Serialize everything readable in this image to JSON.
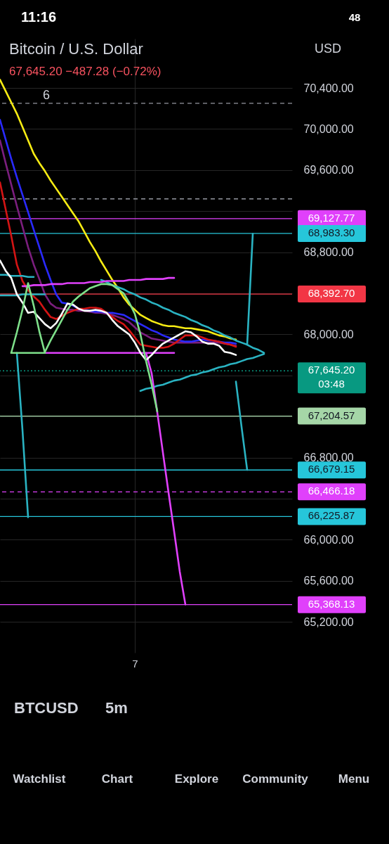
{
  "chart_data": {
    "type": "line",
    "title": "Bitcoin / U.S. Dollar",
    "subtitle": "67,645.20  −487.28 (−0.72%)",
    "categories": [
      null,
      null,
      null,
      null,
      null,
      null,
      null,
      null,
      null,
      null,
      null,
      null,
      null,
      null,
      null,
      null,
      null,
      null,
      null,
      null,
      null,
      null,
      null,
      null,
      "7",
      null,
      null,
      null,
      null,
      null,
      null,
      null,
      null,
      null,
      null,
      null,
      null,
      null,
      null,
      null,
      null,
      null,
      null,
      null,
      null,
      null,
      null,
      null,
      null,
      null,
      null,
      null,
      null
    ],
    "ylim": [
      64900,
      70880
    ],
    "yticks": [
      {
        "value": 70400,
        "label": "70,400.00"
      },
      {
        "value": 70000,
        "label": "70,000.00"
      },
      {
        "value": 69600,
        "label": "69,600.00"
      },
      {
        "value": 69200,
        "label": null
      },
      {
        "value": 68800,
        "label": "68,800.00"
      },
      {
        "value": 68400,
        "label": null
      },
      {
        "value": 68000,
        "label": "68,000.00"
      },
      {
        "value": 67600,
        "label": null
      },
      {
        "value": 67200,
        "label": null
      },
      {
        "value": 66800,
        "label": "66,800.00"
      },
      {
        "value": 66400,
        "label": null
      },
      {
        "value": 66000,
        "label": "66,000.00"
      },
      {
        "value": 65600,
        "label": "65,600.00"
      },
      {
        "value": 65200,
        "label": "65,200.00"
      }
    ],
    "grid": true,
    "series": [
      {
        "color": "#f7ec13",
        "values": [
          70480,
          70370,
          70260,
          70150,
          70020,
          69890,
          69760,
          69670,
          69590,
          69500,
          69420,
          69340,
          69260,
          69180,
          69100,
          69000,
          68900,
          68810,
          68710,
          68620,
          68530,
          68450,
          68360,
          68290,
          68240,
          68190,
          68160,
          68130,
          68110,
          68090,
          68080,
          68080,
          68070,
          68060,
          68060,
          68050,
          68040,
          68030,
          68010,
          67990,
          67980,
          67960,
          67950,
          null,
          null,
          null,
          null,
          null,
          null,
          null,
          null,
          null,
          null
        ]
      },
      {
        "color": "#7b1e7e",
        "values": [
          69890,
          69670,
          69460,
          69250,
          69050,
          68850,
          68680,
          68540,
          68390,
          68300,
          68260,
          68250,
          68240,
          68240,
          68230,
          68230,
          68220,
          68210,
          68210,
          68200,
          68190,
          68170,
          68150,
          68120,
          68070,
          68020,
          67990,
          67960,
          67950,
          67940,
          67930,
          67920,
          67920,
          67920,
          67920,
          67920,
          67920,
          67920,
          67920,
          67920,
          67910,
          67900,
          67890,
          null,
          null,
          null,
          null,
          null,
          null,
          null,
          null,
          null,
          null
        ]
      },
      {
        "color": "#2a2aff",
        "values": [
          70090,
          69900,
          69710,
          69530,
          69360,
          69190,
          69020,
          68850,
          68680,
          68530,
          68390,
          68310,
          68300,
          68280,
          68250,
          68240,
          68230,
          68220,
          68220,
          68210,
          68210,
          68200,
          68190,
          68160,
          68130,
          68100,
          68070,
          68040,
          68020,
          67990,
          67970,
          67950,
          67940,
          67930,
          67930,
          67940,
          67950,
          67940,
          67940,
          67930,
          67920,
          67920,
          67910,
          null,
          null,
          null,
          null,
          null,
          null,
          null,
          null,
          null,
          null
        ]
      },
      {
        "color": "#d41414",
        "values": [
          69480,
          69220,
          68960,
          68680,
          68520,
          68430,
          68370,
          68320,
          68240,
          68170,
          68150,
          68180,
          68210,
          68230,
          68250,
          68250,
          68260,
          68260,
          68250,
          68210,
          68170,
          68130,
          68100,
          68040,
          67970,
          67900,
          67890,
          67880,
          67870,
          67870,
          67880,
          67910,
          67950,
          67990,
          67990,
          67990,
          67970,
          67950,
          67940,
          67930,
          67910,
          67900,
          67880,
          null,
          null,
          null,
          null,
          null,
          null,
          null,
          null,
          null,
          null
        ]
      },
      {
        "color": "#2ab3c2",
        "values": [
          68580,
          68580,
          68570,
          68570,
          68570,
          68560,
          68560,
          null,
          null,
          null,
          null,
          null,
          null,
          null,
          null,
          null,
          null,
          null,
          null,
          null,
          null,
          null,
          null,
          null,
          null,
          null,
          null,
          null,
          null,
          null,
          null,
          null,
          null,
          null,
          null,
          null,
          null,
          null,
          null,
          null,
          null,
          null,
          null,
          null,
          null,
          null,
          null,
          null,
          null,
          null,
          null,
          null,
          null
        ]
      },
      {
        "color": "#2ab3c2",
        "values": [
          68380,
          68380,
          68380,
          68380,
          68390,
          68390,
          68390,
          68390,
          68390,
          null,
          null,
          null,
          null,
          null,
          null,
          null,
          null,
          null,
          null,
          null,
          null,
          null,
          null,
          null,
          null,
          null,
          null,
          null,
          null,
          null,
          null,
          null,
          null,
          null,
          null,
          null,
          null,
          null,
          null,
          null,
          null,
          null,
          null,
          null,
          null,
          null,
          null,
          null,
          null,
          null,
          null,
          null,
          null
        ]
      },
      {
        "color": "#2ab3c2",
        "values": [
          null,
          null,
          null,
          67820,
          67070,
          66220,
          null,
          null,
          null,
          null,
          null,
          null,
          null,
          null,
          null,
          null,
          null,
          null,
          null,
          null,
          null,
          null,
          null,
          null,
          null,
          null,
          null,
          null,
          null,
          null,
          null,
          null,
          null,
          null,
          null,
          null,
          null,
          null,
          null,
          null,
          null,
          null,
          null,
          null,
          null,
          null,
          null,
          null,
          null,
          null,
          null,
          null,
          null
        ]
      },
      {
        "color": "#2ab3c2",
        "values": [
          null,
          null,
          null,
          null,
          null,
          null,
          null,
          null,
          null,
          null,
          null,
          null,
          null,
          null,
          null,
          null,
          null,
          null,
          68530,
          68510,
          68480,
          68460,
          68440,
          68410,
          68390,
          68360,
          68340,
          68310,
          68290,
          68260,
          68240,
          68210,
          68190,
          68170,
          68140,
          68120,
          68090,
          68070,
          68040,
          68020,
          67990,
          67970,
          67940,
          67920,
          67900,
          67870,
          67850,
          67820,
          null,
          null,
          null,
          null,
          null
        ]
      },
      {
        "color": "#2ab3c2",
        "values": [
          null,
          null,
          null,
          null,
          null,
          null,
          null,
          null,
          null,
          null,
          null,
          null,
          null,
          null,
          null,
          null,
          null,
          null,
          null,
          null,
          null,
          null,
          null,
          null,
          null,
          67450,
          67470,
          67480,
          67500,
          67510,
          67530,
          67550,
          67560,
          67580,
          67600,
          67610,
          67630,
          67640,
          67660,
          67680,
          67690,
          67710,
          67720,
          67740,
          67760,
          67770,
          67790,
          67810,
          null,
          null,
          null,
          null,
          null
        ]
      },
      {
        "color": "#2ab3c2",
        "values": [
          null,
          null,
          null,
          null,
          null,
          null,
          null,
          null,
          null,
          null,
          null,
          null,
          null,
          null,
          null,
          null,
          null,
          null,
          null,
          null,
          null,
          null,
          null,
          null,
          null,
          null,
          null,
          null,
          null,
          null,
          null,
          null,
          null,
          null,
          null,
          null,
          null,
          null,
          null,
          null,
          null,
          null,
          null,
          null,
          67900,
          68980,
          null,
          null,
          null,
          null,
          null,
          null,
          null
        ]
      },
      {
        "color": "#2ab3c2",
        "values": [
          null,
          null,
          null,
          null,
          null,
          null,
          null,
          null,
          null,
          null,
          null,
          null,
          null,
          null,
          null,
          null,
          null,
          null,
          null,
          null,
          null,
          null,
          null,
          null,
          null,
          null,
          null,
          null,
          null,
          null,
          null,
          null,
          null,
          null,
          null,
          null,
          null,
          null,
          null,
          null,
          null,
          null,
          67540,
          67100,
          66680,
          null,
          null,
          null,
          null,
          null,
          null,
          null,
          null
        ]
      },
      {
        "color": "#e040fb",
        "values": [
          null,
          null,
          null,
          null,
          68470,
          68470,
          68480,
          68480,
          68480,
          68490,
          68490,
          68490,
          68500,
          68500,
          68500,
          68500,
          68510,
          68510,
          68510,
          68520,
          68520,
          68520,
          68520,
          68530,
          68530,
          68530,
          68540,
          68540,
          68540,
          68540,
          68550,
          68550,
          null,
          null,
          null,
          null,
          null,
          null,
          null,
          null,
          null,
          null,
          null,
          null,
          null,
          null,
          null,
          null,
          null,
          null,
          null,
          null,
          null
        ]
      },
      {
        "color": "#e040fb",
        "values": [
          null,
          null,
          null,
          null,
          null,
          null,
          null,
          null,
          67820,
          67820,
          67820,
          67820,
          67820,
          67820,
          67820,
          67820,
          67820,
          67820,
          67820,
          67820,
          67820,
          67820,
          67820,
          67820,
          67820,
          67820,
          67820,
          67820,
          67820,
          67820,
          67820,
          67820,
          null,
          null,
          null,
          null,
          null,
          null,
          null,
          null,
          null,
          null,
          null,
          null,
          null,
          null,
          null,
          null,
          null,
          null,
          null,
          null,
          null
        ]
      },
      {
        "color": "#e040fb",
        "values": [
          null,
          null,
          null,
          null,
          null,
          null,
          null,
          null,
          null,
          null,
          null,
          null,
          null,
          null,
          null,
          null,
          null,
          null,
          null,
          null,
          null,
          null,
          null,
          null,
          null,
          null,
          67820,
          67620,
          67240,
          66850,
          66460,
          66080,
          65690,
          65370,
          null,
          null,
          null,
          null,
          null,
          null,
          null,
          null,
          null,
          null,
          null,
          null,
          null,
          null,
          null,
          null,
          null,
          null,
          null
        ]
      },
      {
        "color": "#ffffff",
        "values": [
          68720,
          68620,
          68550,
          68390,
          68310,
          68210,
          68220,
          68160,
          68100,
          68060,
          68110,
          68200,
          68300,
          68290,
          68250,
          68230,
          68230,
          68240,
          68230,
          68210,
          68140,
          68080,
          68040,
          68000,
          67920,
          67820,
          67750,
          67800,
          67860,
          67910,
          67940,
          67970,
          68000,
          68030,
          68020,
          67980,
          67930,
          67910,
          67910,
          67890,
          67830,
          67820,
          67800,
          null,
          null,
          null,
          null,
          null,
          null,
          null,
          null,
          null,
          null
        ]
      },
      {
        "color": "#7ee08a",
        "values": [
          null,
          null,
          67820,
          68020,
          68240,
          68500,
          68280,
          68030,
          67820,
          null,
          null,
          null,
          null,
          null,
          null,
          null,
          null,
          null,
          null,
          null,
          null,
          null,
          null,
          null,
          null,
          null,
          null,
          null,
          null,
          null,
          null,
          null,
          null,
          null,
          null,
          null,
          null,
          null,
          null,
          null,
          null,
          null,
          null,
          null,
          null,
          null,
          null,
          null,
          null,
          null,
          null,
          null,
          null
        ]
      },
      {
        "color": "#7ee08a",
        "values": [
          null,
          null,
          67820,
          67820,
          67820,
          67820,
          67820,
          67820,
          67820,
          null,
          null,
          null,
          null,
          null,
          null,
          null,
          null,
          null,
          null,
          null,
          null,
          null,
          null,
          null,
          null,
          null,
          null,
          null,
          null,
          null,
          null,
          null,
          null,
          null,
          null,
          null,
          null,
          null,
          null,
          null,
          null,
          null,
          null,
          null,
          null,
          null,
          null,
          null,
          null,
          null,
          null,
          null,
          null
        ]
      },
      {
        "color": "#7ee08a",
        "values": [
          null,
          null,
          null,
          null,
          null,
          null,
          null,
          null,
          67830,
          67940,
          68040,
          68140,
          68240,
          68320,
          68370,
          68410,
          68450,
          68470,
          68490,
          68490,
          68480,
          68440,
          68400,
          68310,
          68200,
          68000,
          67740,
          67510,
          67250,
          null,
          null,
          null,
          null,
          null,
          null,
          null,
          null,
          null,
          null,
          null,
          null,
          null,
          null,
          null,
          null,
          null,
          null,
          null,
          null,
          null,
          null,
          null,
          null
        ]
      }
    ],
    "ref_lines": [
      {
        "axis": "y",
        "value": 70250,
        "color": "#9598a1",
        "line_style": "dashed"
      },
      {
        "axis": "y",
        "value": 69320,
        "color": "#9598a1",
        "line_style": "dashed"
      },
      {
        "axis": "y",
        "value": 69127.77,
        "label": "69,127.77",
        "color": "#e040fb"
      },
      {
        "axis": "y",
        "value": 68983.3,
        "label": "68,983.30",
        "color": "#26c6da"
      },
      {
        "axis": "y",
        "value": 68392.7,
        "label": "68,392.70",
        "color": "#f23645"
      },
      {
        "axis": "y",
        "value": 67645.2,
        "label": "67,645.20\n03:48",
        "color": "#089981",
        "line_style": "dotted"
      },
      {
        "axis": "y",
        "value": 67204.57,
        "label": "67,204.57",
        "color": "#a5d6a7"
      },
      {
        "axis": "y",
        "value": 66679.15,
        "label": "66,679.15",
        "color": "#26c6da"
      },
      {
        "axis": "y",
        "value": 66466.18,
        "label": "66,466.18",
        "color": "#e040fb",
        "line_style": "dashed"
      },
      {
        "axis": "y",
        "value": 66225.87,
        "label": "66,225.87",
        "color": "#26c6da"
      },
      {
        "axis": "y",
        "value": 65368.13,
        "label": "65,368.13",
        "color": "#e040fb"
      }
    ],
    "annotations": [
      "6",
      "USD",
      "BTCUSD",
      "5m",
      "Watchlist",
      "Chart",
      "Explore",
      "Community",
      "Menu",
      "11:16",
      "48"
    ]
  }
}
